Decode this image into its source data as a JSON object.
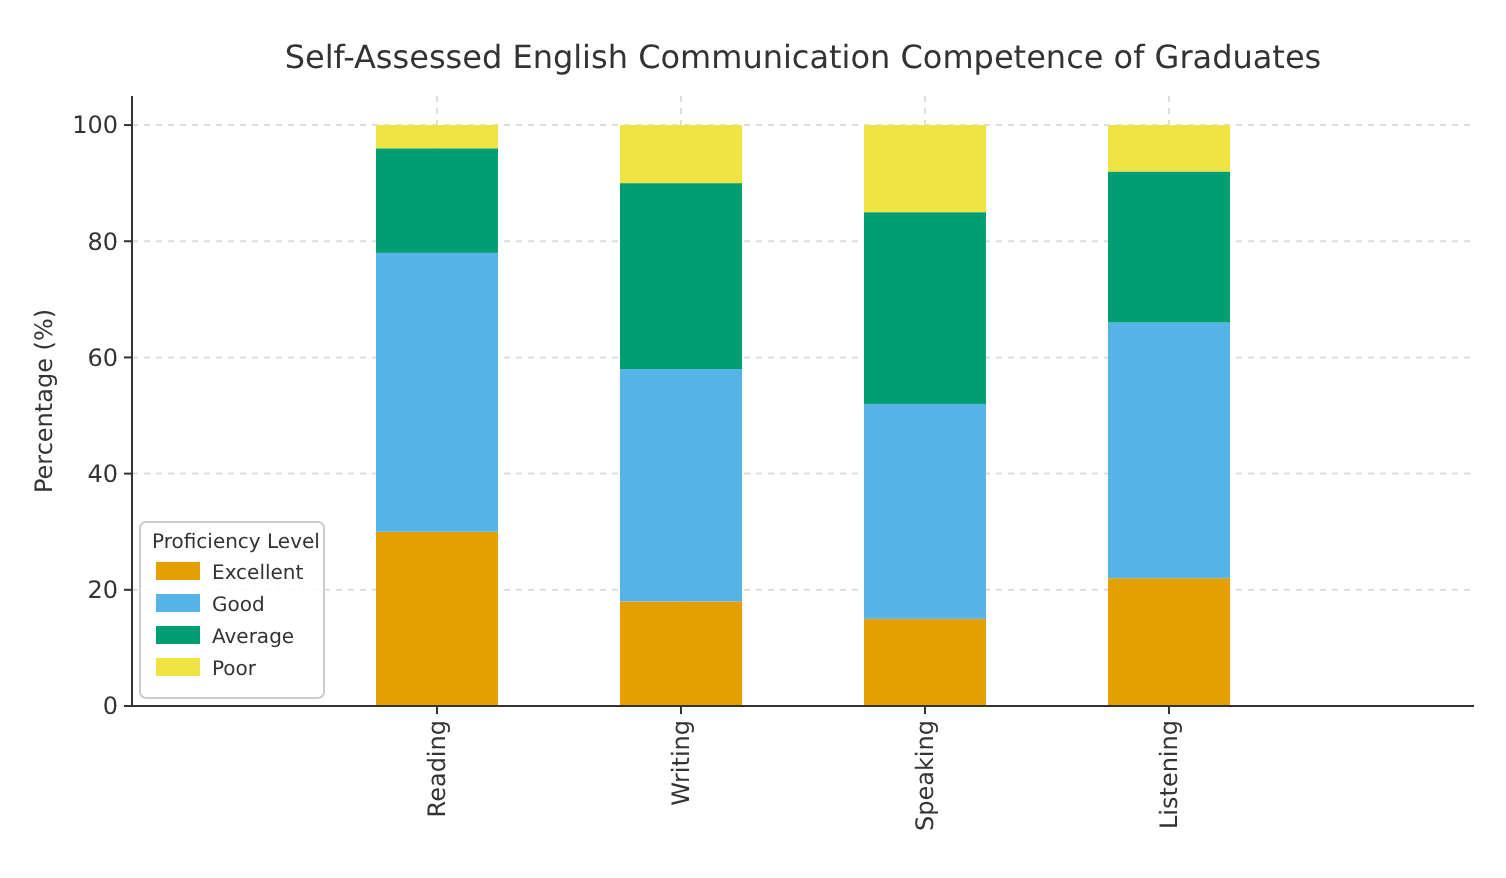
{
  "chart_data": {
    "type": "bar",
    "title": "Self-Assessed English Communication Competence of Graduates",
    "ylabel": "Percentage (%)",
    "legend_title": "Proficiency Level",
    "categories": [
      "Reading",
      "Writing",
      "Speaking",
      "Listening"
    ],
    "stacked": true,
    "series": [
      {
        "name": "Excellent",
        "color": "#e69f00",
        "values": [
          30,
          18,
          15,
          22
        ]
      },
      {
        "name": "Good",
        "color": "#56b4e9",
        "values": [
          48,
          40,
          37,
          44
        ]
      },
      {
        "name": "Average",
        "color": "#009e73",
        "values": [
          18,
          32,
          33,
          26
        ]
      },
      {
        "name": "Poor",
        "color": "#f0e442",
        "values": [
          4,
          10,
          15,
          8
        ]
      }
    ],
    "ylim": [
      0,
      105
    ],
    "yticks": [
      0,
      20,
      40,
      60,
      80,
      100
    ],
    "grid": true,
    "legend": "bottom left"
  }
}
